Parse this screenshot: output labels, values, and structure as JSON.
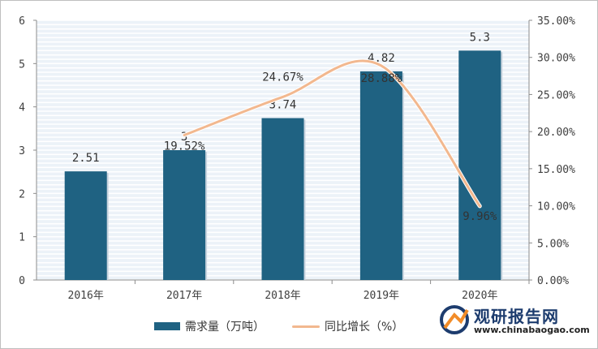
{
  "chart_data": {
    "type": "bar",
    "categories": [
      "2016年",
      "2017年",
      "2018年",
      "2019年",
      "2020年"
    ],
    "series": [
      {
        "name": "需求量（万吨）",
        "type": "bar",
        "axis": "left",
        "values": [
          2.51,
          3,
          3.74,
          4.82,
          5.3
        ],
        "labels": [
          "2.51",
          "3",
          "3.74",
          "4.82",
          "5.3"
        ],
        "color": "#1f6282"
      },
      {
        "name": "同比增长（%）",
        "type": "line",
        "axis": "right",
        "values": [
          null,
          19.52,
          24.67,
          28.88,
          9.96
        ],
        "labels": [
          "",
          "19.52%",
          "24.67%",
          "28.88%",
          "9.96%"
        ],
        "color": "#f2b88f"
      }
    ],
    "y_left": {
      "ylim": [
        0,
        6
      ],
      "ticks": [
        "0",
        "1",
        "2",
        "3",
        "4",
        "5",
        "6"
      ]
    },
    "y_right": {
      "ylim": [
        0,
        35
      ],
      "ticks": [
        "0.00%",
        "5.00%",
        "10.00%",
        "15.00%",
        "20.00%",
        "25.00%",
        "30.00%",
        "35.00%"
      ]
    },
    "grid": true,
    "legend": "bottom"
  },
  "watermark": {
    "name": "观研报告网",
    "url": "www.chinabaogao.com"
  }
}
